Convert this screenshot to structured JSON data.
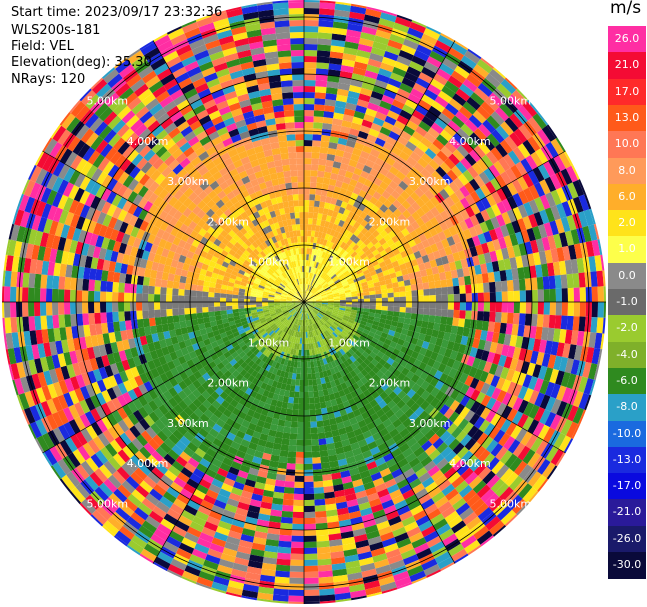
{
  "header": {
    "start_time": "Start time: 2023/09/17 23:32:36",
    "site": "WLS200s-181",
    "field": "Field: VEL",
    "elevation": "Elevation(deg): 35.30",
    "nrays": "NRays: 120"
  },
  "rings": {
    "labels": [
      "1.00km",
      "2.00km",
      "3.00km",
      "4.00km",
      "5.00km"
    ]
  },
  "colorbar": {
    "unit": "m/s",
    "labels": [
      "26.0",
      "21.0",
      "17.0",
      "13.0",
      "10.0",
      "8.0",
      "6.0",
      "2.0",
      "1.0",
      "0.0",
      "-1.0",
      "-2.0",
      "-4.0",
      "-6.0",
      "-8.0",
      "-10.0",
      "-13.0",
      "-17.0",
      "-21.0",
      "-26.0",
      "-30.0"
    ],
    "colors": [
      "#ff2ea3",
      "#f40b34",
      "#ff2a2a",
      "#ff5a1a",
      "#ff7755",
      "#ff9a5a",
      "#ffae2a",
      "#ffe31a",
      "#fdff4a",
      "#8a8a8a",
      "#6a6a6a",
      "#9acb2f",
      "#7fb02a",
      "#2f8a1f",
      "#2aa0c8",
      "#1a6adf",
      "#1a2adf",
      "#0a0adf",
      "#2a1a9a",
      "#1a1a6a",
      "#0a0a3a"
    ]
  }
}
